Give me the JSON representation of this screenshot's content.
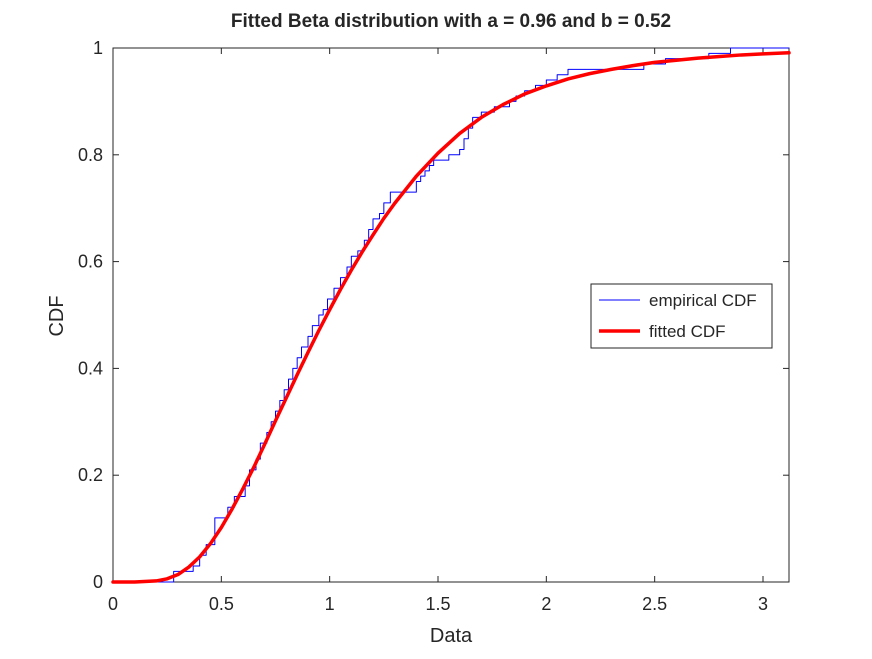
{
  "chart_data": {
    "type": "line",
    "title": "Fitted Beta distribution with a = 0.96 and b = 0.52",
    "xlabel": "Data",
    "ylabel": "CDF",
    "xlim": [
      0,
      3.12
    ],
    "ylim": [
      0,
      1
    ],
    "xticks": [
      0,
      0.5,
      1,
      1.5,
      2,
      2.5,
      3
    ],
    "xtick_labels": [
      "0",
      "0.5",
      "1",
      "1.5",
      "2",
      "2.5",
      "3"
    ],
    "yticks": [
      0,
      0.2,
      0.4,
      0.6,
      0.8,
      1
    ],
    "ytick_labels": [
      "0",
      "0.2",
      "0.4",
      "0.6",
      "0.8",
      "1"
    ],
    "grid": false,
    "legend_position": "right",
    "series": [
      {
        "name": "empirical CDF",
        "color": "#0000ff",
        "style": "stairs",
        "x": [
          0,
          0.28,
          0.33,
          0.37,
          0.4,
          0.43,
          0.47,
          0.53,
          0.56,
          0.61,
          0.63,
          0.66,
          0.68,
          0.71,
          0.73,
          0.75,
          0.77,
          0.79,
          0.81,
          0.83,
          0.85,
          0.87,
          0.9,
          0.92,
          0.95,
          0.97,
          0.99,
          1.02,
          1.05,
          1.08,
          1.1,
          1.13,
          1.16,
          1.18,
          1.2,
          1.23,
          1.25,
          1.28,
          1.31,
          1.4,
          1.42,
          1.44,
          1.46,
          1.48,
          1.5,
          1.55,
          1.6,
          1.62,
          1.64,
          1.66,
          1.7,
          1.76,
          1.83,
          1.86,
          1.9,
          1.95,
          2.0,
          2.05,
          2.1,
          2.3,
          2.45,
          2.55,
          2.75,
          2.85,
          3.12
        ],
        "y": [
          0,
          0.02,
          0.02,
          0.03,
          0.05,
          0.07,
          0.12,
          0.14,
          0.16,
          0.18,
          0.21,
          0.23,
          0.26,
          0.28,
          0.3,
          0.32,
          0.34,
          0.36,
          0.38,
          0.4,
          0.42,
          0.44,
          0.46,
          0.48,
          0.5,
          0.51,
          0.53,
          0.55,
          0.57,
          0.59,
          0.61,
          0.62,
          0.64,
          0.66,
          0.68,
          0.69,
          0.71,
          0.73,
          0.73,
          0.75,
          0.76,
          0.77,
          0.78,
          0.79,
          0.79,
          0.8,
          0.81,
          0.83,
          0.85,
          0.87,
          0.88,
          0.89,
          0.9,
          0.91,
          0.92,
          0.93,
          0.94,
          0.95,
          0.96,
          0.96,
          0.97,
          0.98,
          0.99,
          1.0,
          1.0
        ]
      },
      {
        "name": "fitted CDF",
        "color": "#ff0000",
        "style": "line",
        "x": [
          0,
          0.1,
          0.2,
          0.25,
          0.3,
          0.35,
          0.4,
          0.45,
          0.5,
          0.55,
          0.6,
          0.65,
          0.7,
          0.75,
          0.8,
          0.85,
          0.9,
          0.95,
          1.0,
          1.05,
          1.1,
          1.15,
          1.2,
          1.25,
          1.3,
          1.4,
          1.5,
          1.6,
          1.7,
          1.8,
          1.9,
          2.0,
          2.1,
          2.2,
          2.3,
          2.4,
          2.5,
          2.6,
          2.7,
          2.8,
          2.9,
          3.0,
          3.12
        ],
        "y": [
          0,
          0.0,
          0.002,
          0.006,
          0.014,
          0.028,
          0.047,
          0.072,
          0.102,
          0.137,
          0.175,
          0.215,
          0.258,
          0.302,
          0.345,
          0.388,
          0.43,
          0.471,
          0.51,
          0.548,
          0.584,
          0.618,
          0.65,
          0.681,
          0.709,
          0.76,
          0.803,
          0.84,
          0.87,
          0.894,
          0.914,
          0.929,
          0.942,
          0.952,
          0.96,
          0.967,
          0.973,
          0.977,
          0.981,
          0.984,
          0.987,
          0.989,
          0.991
        ]
      }
    ]
  }
}
